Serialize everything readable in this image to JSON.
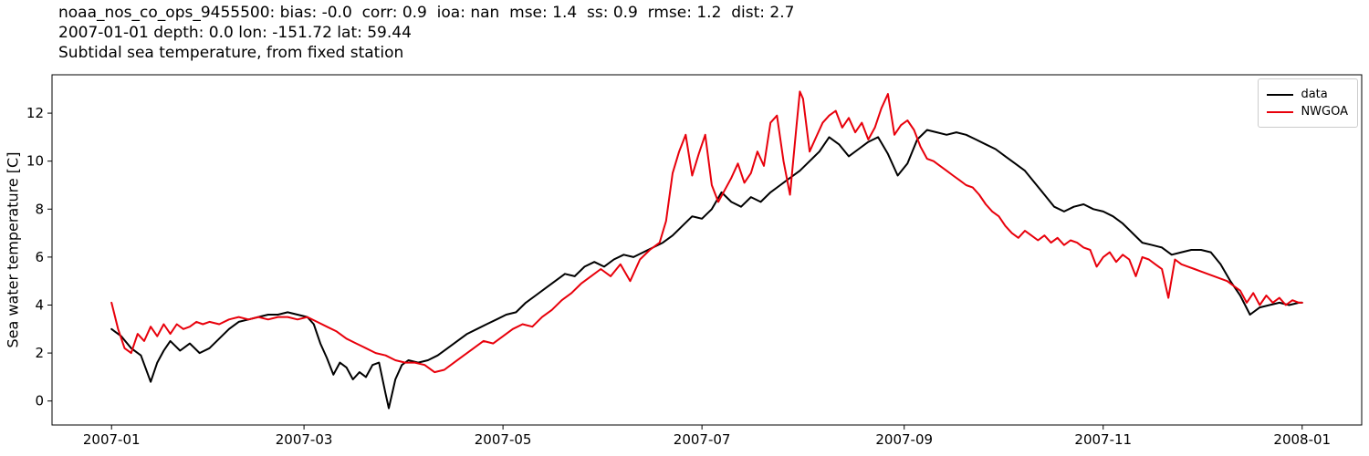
{
  "chart_data": {
    "type": "line",
    "title_line1": "noaa_nos_co_ops_9455500: bias: -0.0  corr: 0.9  ioa: nan  mse: 1.4  ss: 0.9  rmse: 1.2  dist: 2.7",
    "title_line2": "2007-01-01 depth: 0.0 lon: -151.72 lat: 59.44",
    "title_line3": "Subtidal sea temperature, from fixed station",
    "ylabel": "Sea water temperature [C]",
    "xlabel": "",
    "legend_position": "upper right",
    "grid": false,
    "xlim_days": [
      -18.25,
      383.25
    ],
    "ylim": [
      -1.0,
      13.6
    ],
    "yticks": [
      0,
      2,
      4,
      6,
      8,
      10,
      12
    ],
    "xticks": [
      {
        "label": "2007-01",
        "day": 0
      },
      {
        "label": "2007-03",
        "day": 59
      },
      {
        "label": "2007-05",
        "day": 120
      },
      {
        "label": "2007-07",
        "day": 181
      },
      {
        "label": "2007-09",
        "day": 243
      },
      {
        "label": "2007-11",
        "day": 304
      },
      {
        "label": "2008-01",
        "day": 365
      }
    ],
    "x_unit": "days since 2007-01-01",
    "series": [
      {
        "name": "data",
        "color": "#000000",
        "points": [
          [
            0,
            3.0
          ],
          [
            3,
            2.7
          ],
          [
            6,
            2.2
          ],
          [
            9,
            1.9
          ],
          [
            12,
            0.8
          ],
          [
            14,
            1.6
          ],
          [
            16,
            2.1
          ],
          [
            18,
            2.5
          ],
          [
            21,
            2.1
          ],
          [
            24,
            2.4
          ],
          [
            27,
            2.0
          ],
          [
            30,
            2.2
          ],
          [
            33,
            2.6
          ],
          [
            36,
            3.0
          ],
          [
            39,
            3.3
          ],
          [
            42,
            3.4
          ],
          [
            45,
            3.5
          ],
          [
            48,
            3.6
          ],
          [
            51,
            3.6
          ],
          [
            54,
            3.7
          ],
          [
            57,
            3.6
          ],
          [
            60,
            3.5
          ],
          [
            62,
            3.2
          ],
          [
            64,
            2.4
          ],
          [
            66,
            1.8
          ],
          [
            68,
            1.1
          ],
          [
            70,
            1.6
          ],
          [
            72,
            1.4
          ],
          [
            74,
            0.9
          ],
          [
            76,
            1.2
          ],
          [
            78,
            1.0
          ],
          [
            80,
            1.5
          ],
          [
            82,
            1.6
          ],
          [
            84,
            0.3
          ],
          [
            85,
            -0.3
          ],
          [
            87,
            0.9
          ],
          [
            89,
            1.5
          ],
          [
            91,
            1.7
          ],
          [
            94,
            1.6
          ],
          [
            97,
            1.7
          ],
          [
            100,
            1.9
          ],
          [
            103,
            2.2
          ],
          [
            106,
            2.5
          ],
          [
            109,
            2.8
          ],
          [
            112,
            3.0
          ],
          [
            115,
            3.2
          ],
          [
            118,
            3.4
          ],
          [
            121,
            3.6
          ],
          [
            124,
            3.7
          ],
          [
            127,
            4.1
          ],
          [
            130,
            4.4
          ],
          [
            133,
            4.7
          ],
          [
            136,
            5.0
          ],
          [
            139,
            5.3
          ],
          [
            142,
            5.2
          ],
          [
            145,
            5.6
          ],
          [
            148,
            5.8
          ],
          [
            151,
            5.6
          ],
          [
            154,
            5.9
          ],
          [
            157,
            6.1
          ],
          [
            160,
            6.0
          ],
          [
            163,
            6.2
          ],
          [
            166,
            6.4
          ],
          [
            169,
            6.6
          ],
          [
            172,
            6.9
          ],
          [
            175,
            7.3
          ],
          [
            178,
            7.7
          ],
          [
            181,
            7.6
          ],
          [
            184,
            8.0
          ],
          [
            187,
            8.7
          ],
          [
            190,
            8.3
          ],
          [
            193,
            8.1
          ],
          [
            196,
            8.5
          ],
          [
            199,
            8.3
          ],
          [
            202,
            8.7
          ],
          [
            205,
            9.0
          ],
          [
            208,
            9.3
          ],
          [
            211,
            9.6
          ],
          [
            214,
            10.0
          ],
          [
            217,
            10.4
          ],
          [
            220,
            11.0
          ],
          [
            223,
            10.7
          ],
          [
            226,
            10.2
          ],
          [
            229,
            10.5
          ],
          [
            232,
            10.8
          ],
          [
            235,
            11.0
          ],
          [
            238,
            10.3
          ],
          [
            241,
            9.4
          ],
          [
            244,
            9.9
          ],
          [
            247,
            10.9
          ],
          [
            250,
            11.3
          ],
          [
            253,
            11.2
          ],
          [
            256,
            11.1
          ],
          [
            259,
            11.2
          ],
          [
            262,
            11.1
          ],
          [
            265,
            10.9
          ],
          [
            268,
            10.7
          ],
          [
            271,
            10.5
          ],
          [
            274,
            10.2
          ],
          [
            277,
            9.9
          ],
          [
            280,
            9.6
          ],
          [
            283,
            9.1
          ],
          [
            286,
            8.6
          ],
          [
            289,
            8.1
          ],
          [
            292,
            7.9
          ],
          [
            295,
            8.1
          ],
          [
            298,
            8.2
          ],
          [
            301,
            8.0
          ],
          [
            304,
            7.9
          ],
          [
            307,
            7.7
          ],
          [
            310,
            7.4
          ],
          [
            313,
            7.0
          ],
          [
            316,
            6.6
          ],
          [
            319,
            6.5
          ],
          [
            322,
            6.4
          ],
          [
            325,
            6.1
          ],
          [
            328,
            6.2
          ],
          [
            331,
            6.3
          ],
          [
            334,
            6.3
          ],
          [
            337,
            6.2
          ],
          [
            340,
            5.7
          ],
          [
            343,
            5.0
          ],
          [
            346,
            4.4
          ],
          [
            349,
            3.6
          ],
          [
            352,
            3.9
          ],
          [
            355,
            4.0
          ],
          [
            358,
            4.1
          ],
          [
            361,
            4.0
          ],
          [
            364,
            4.1
          ],
          [
            365,
            4.1
          ]
        ]
      },
      {
        "name": "NWGOA",
        "color": "#e8000b",
        "points": [
          [
            0,
            4.1
          ],
          [
            2,
            3.0
          ],
          [
            4,
            2.2
          ],
          [
            6,
            2.0
          ],
          [
            8,
            2.8
          ],
          [
            10,
            2.5
          ],
          [
            12,
            3.1
          ],
          [
            14,
            2.7
          ],
          [
            16,
            3.2
          ],
          [
            18,
            2.8
          ],
          [
            20,
            3.2
          ],
          [
            22,
            3.0
          ],
          [
            24,
            3.1
          ],
          [
            26,
            3.3
          ],
          [
            28,
            3.2
          ],
          [
            30,
            3.3
          ],
          [
            33,
            3.2
          ],
          [
            36,
            3.4
          ],
          [
            39,
            3.5
          ],
          [
            42,
            3.4
          ],
          [
            45,
            3.5
          ],
          [
            48,
            3.4
          ],
          [
            51,
            3.5
          ],
          [
            54,
            3.5
          ],
          [
            57,
            3.4
          ],
          [
            60,
            3.5
          ],
          [
            63,
            3.3
          ],
          [
            66,
            3.1
          ],
          [
            69,
            2.9
          ],
          [
            72,
            2.6
          ],
          [
            75,
            2.4
          ],
          [
            78,
            2.2
          ],
          [
            81,
            2.0
          ],
          [
            84,
            1.9
          ],
          [
            87,
            1.7
          ],
          [
            90,
            1.6
          ],
          [
            93,
            1.6
          ],
          [
            96,
            1.5
          ],
          [
            99,
            1.2
          ],
          [
            102,
            1.3
          ],
          [
            105,
            1.6
          ],
          [
            108,
            1.9
          ],
          [
            111,
            2.2
          ],
          [
            114,
            2.5
          ],
          [
            117,
            2.4
          ],
          [
            120,
            2.7
          ],
          [
            123,
            3.0
          ],
          [
            126,
            3.2
          ],
          [
            129,
            3.1
          ],
          [
            132,
            3.5
          ],
          [
            135,
            3.8
          ],
          [
            138,
            4.2
          ],
          [
            141,
            4.5
          ],
          [
            144,
            4.9
          ],
          [
            147,
            5.2
          ],
          [
            150,
            5.5
          ],
          [
            153,
            5.2
          ],
          [
            156,
            5.7
          ],
          [
            159,
            5.0
          ],
          [
            162,
            5.9
          ],
          [
            165,
            6.3
          ],
          [
            168,
            6.6
          ],
          [
            170,
            7.5
          ],
          [
            172,
            9.5
          ],
          [
            174,
            10.4
          ],
          [
            176,
            11.1
          ],
          [
            178,
            9.4
          ],
          [
            180,
            10.3
          ],
          [
            182,
            11.1
          ],
          [
            184,
            9.0
          ],
          [
            186,
            8.3
          ],
          [
            188,
            8.8
          ],
          [
            190,
            9.3
          ],
          [
            192,
            9.9
          ],
          [
            194,
            9.1
          ],
          [
            196,
            9.5
          ],
          [
            198,
            10.4
          ],
          [
            200,
            9.8
          ],
          [
            202,
            11.6
          ],
          [
            204,
            11.9
          ],
          [
            206,
            10.0
          ],
          [
            208,
            8.6
          ],
          [
            210,
            11.5
          ],
          [
            211,
            12.9
          ],
          [
            212,
            12.6
          ],
          [
            214,
            10.4
          ],
          [
            216,
            11.0
          ],
          [
            218,
            11.6
          ],
          [
            220,
            11.9
          ],
          [
            222,
            12.1
          ],
          [
            224,
            11.4
          ],
          [
            226,
            11.8
          ],
          [
            228,
            11.2
          ],
          [
            230,
            11.6
          ],
          [
            232,
            10.9
          ],
          [
            234,
            11.4
          ],
          [
            236,
            12.2
          ],
          [
            238,
            12.8
          ],
          [
            240,
            11.1
          ],
          [
            242,
            11.5
          ],
          [
            244,
            11.7
          ],
          [
            246,
            11.3
          ],
          [
            248,
            10.6
          ],
          [
            250,
            10.1
          ],
          [
            252,
            10.0
          ],
          [
            254,
            9.8
          ],
          [
            256,
            9.6
          ],
          [
            258,
            9.4
          ],
          [
            260,
            9.2
          ],
          [
            262,
            9.0
          ],
          [
            264,
            8.9
          ],
          [
            266,
            8.6
          ],
          [
            268,
            8.2
          ],
          [
            270,
            7.9
          ],
          [
            272,
            7.7
          ],
          [
            274,
            7.3
          ],
          [
            276,
            7.0
          ],
          [
            278,
            6.8
          ],
          [
            280,
            7.1
          ],
          [
            282,
            6.9
          ],
          [
            284,
            6.7
          ],
          [
            286,
            6.9
          ],
          [
            288,
            6.6
          ],
          [
            290,
            6.8
          ],
          [
            292,
            6.5
          ],
          [
            294,
            6.7
          ],
          [
            296,
            6.6
          ],
          [
            298,
            6.4
          ],
          [
            300,
            6.3
          ],
          [
            302,
            5.6
          ],
          [
            304,
            6.0
          ],
          [
            306,
            6.2
          ],
          [
            308,
            5.8
          ],
          [
            310,
            6.1
          ],
          [
            312,
            5.9
          ],
          [
            314,
            5.2
          ],
          [
            316,
            6.0
          ],
          [
            318,
            5.9
          ],
          [
            320,
            5.7
          ],
          [
            322,
            5.5
          ],
          [
            324,
            4.3
          ],
          [
            326,
            5.9
          ],
          [
            328,
            5.7
          ],
          [
            330,
            5.6
          ],
          [
            332,
            5.5
          ],
          [
            334,
            5.4
          ],
          [
            336,
            5.3
          ],
          [
            338,
            5.2
          ],
          [
            340,
            5.1
          ],
          [
            342,
            5.0
          ],
          [
            344,
            4.8
          ],
          [
            346,
            4.6
          ],
          [
            348,
            4.1
          ],
          [
            350,
            4.5
          ],
          [
            352,
            4.0
          ],
          [
            354,
            4.4
          ],
          [
            356,
            4.1
          ],
          [
            358,
            4.3
          ],
          [
            360,
            4.0
          ],
          [
            362,
            4.2
          ],
          [
            364,
            4.1
          ],
          [
            365,
            4.1
          ]
        ]
      }
    ]
  }
}
